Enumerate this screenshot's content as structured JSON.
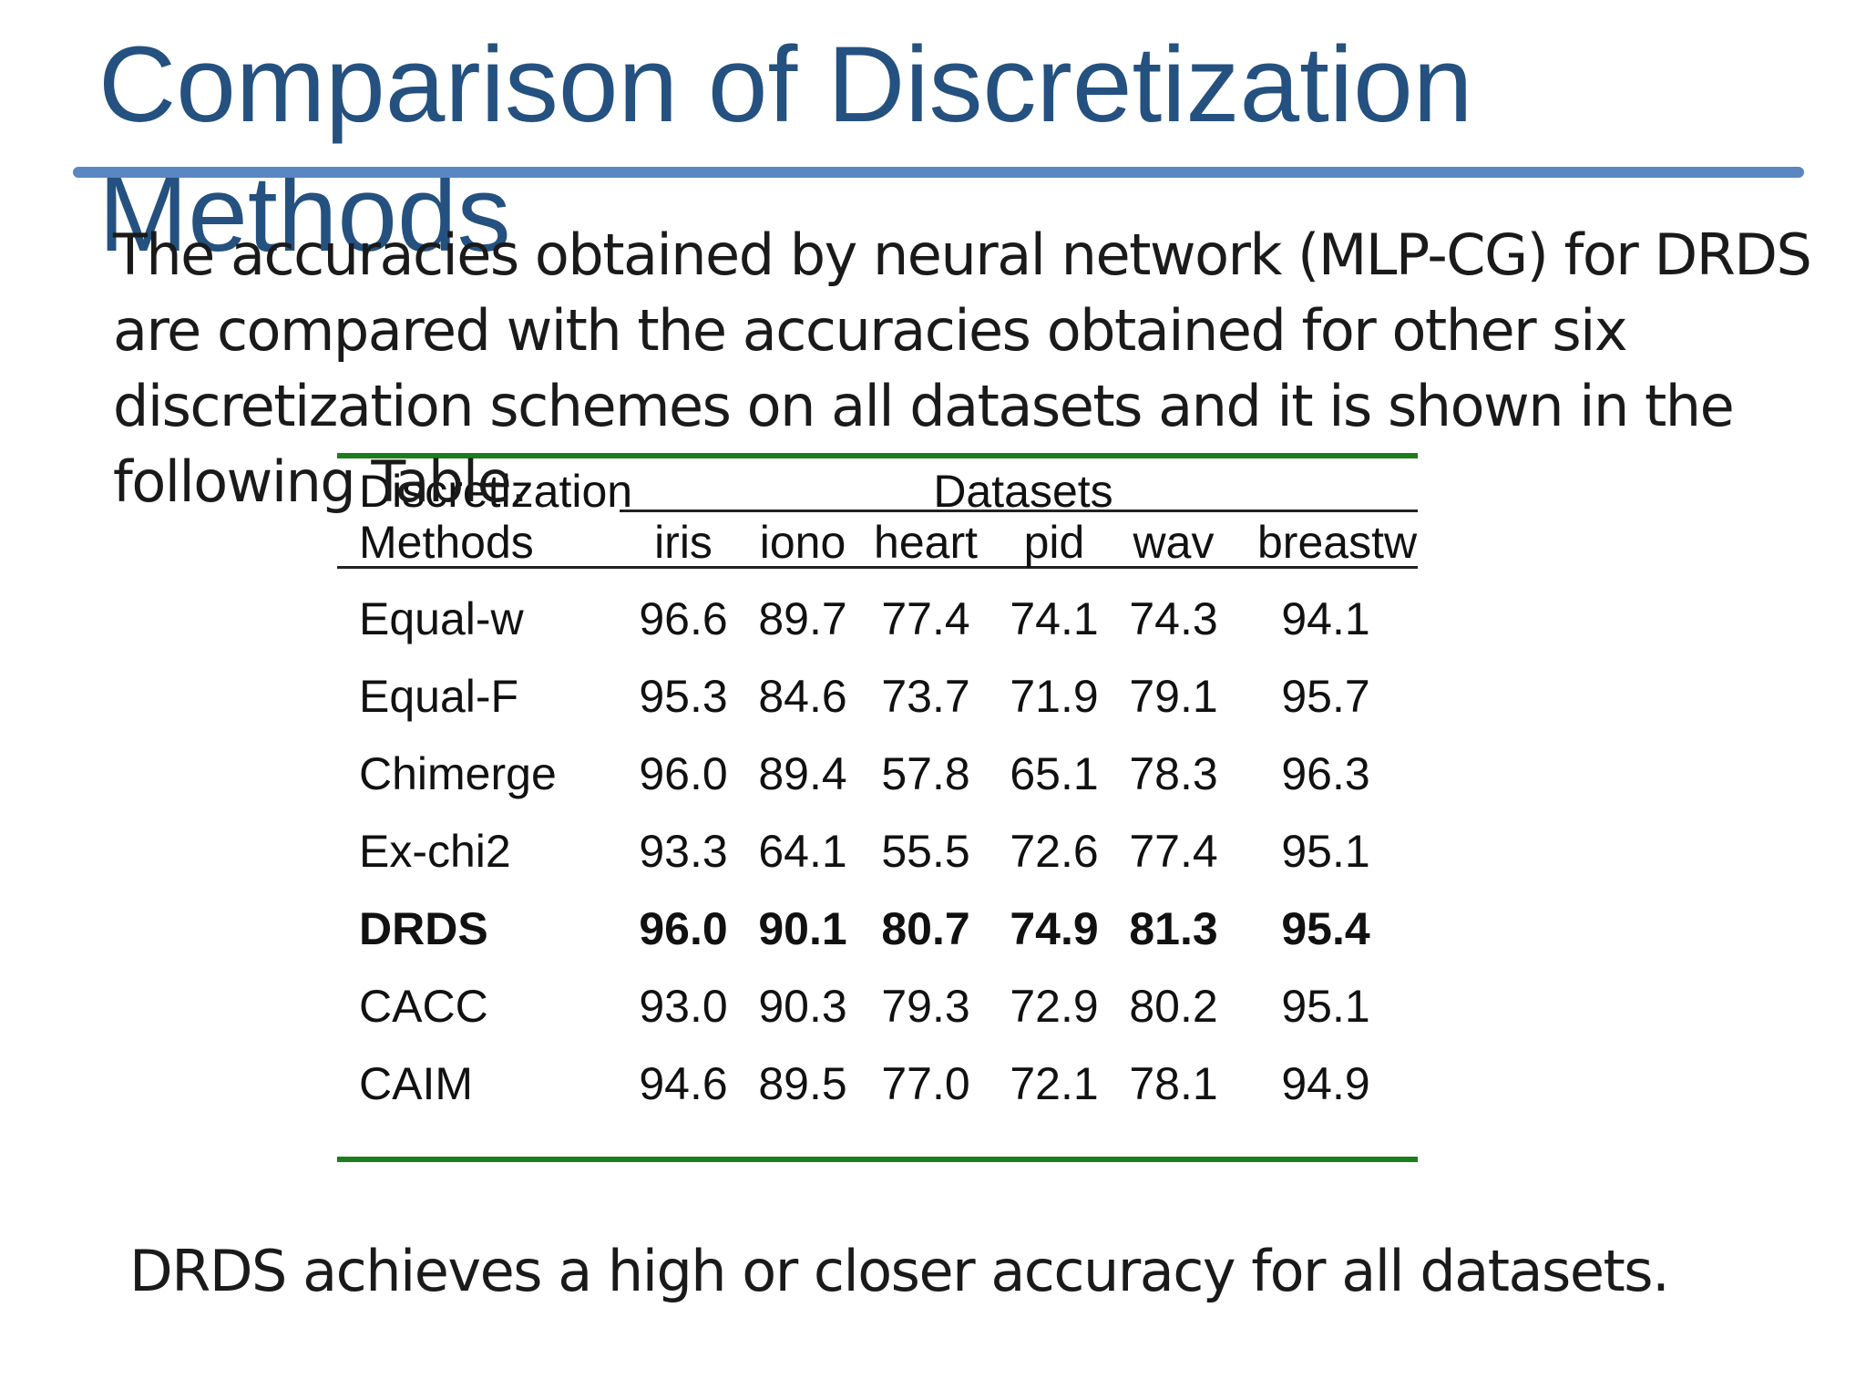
{
  "title": "Comparison of Discretization Methods",
  "intro": "The accuracies obtained by neural network (MLP-CG) for DRDS are compared with the accuracies obtained for other six discretization schemes on all datasets and it is shown in the following Table.",
  "table": {
    "method_header": [
      "Discretization",
      "Methods"
    ],
    "group_header": "Datasets",
    "columns": [
      "iris",
      "iono",
      "heart",
      "pid",
      "wav",
      "breastw"
    ],
    "rows": [
      {
        "method": "Equal-w",
        "values": [
          "96.6",
          "89.7",
          "77.4",
          "74.1",
          "74.3",
          "94.1"
        ]
      },
      {
        "method": "Equal-F",
        "values": [
          "95.3",
          "84.6",
          "73.7",
          "71.9",
          "79.1",
          "95.7"
        ]
      },
      {
        "method": "Chimerge",
        "values": [
          "96.0",
          "89.4",
          "57.8",
          "65.1",
          "78.3",
          "96.3"
        ]
      },
      {
        "method": "Ex-chi2",
        "values": [
          "93.3",
          "64.1",
          "55.5",
          "72.6",
          "77.4",
          "95.1"
        ]
      },
      {
        "method": "DRDS",
        "values": [
          "96.0",
          "90.1",
          "80.7",
          "74.9",
          "81.3",
          "95.4"
        ],
        "bold": true
      },
      {
        "method": "CACC",
        "values": [
          "93.0",
          "90.3",
          "79.3",
          "72.9",
          "80.2",
          "95.1"
        ]
      },
      {
        "method": "CAIM",
        "values": [
          "94.6",
          "89.5",
          "77.0",
          "72.1",
          "78.1",
          "94.9"
        ]
      }
    ]
  },
  "conclusion": "DRDS achieves a high or closer accuracy for all datasets."
}
